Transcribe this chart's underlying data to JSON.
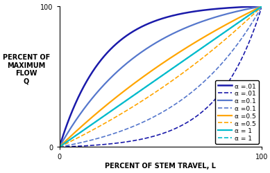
{
  "xlabel": "PERCENT OF STEM TRAVEL, L",
  "ylabel": "PERCENT OF\nMAXIMUM\nFLOW\nQ",
  "xlim": [
    0,
    100
  ],
  "ylim": [
    0,
    100
  ],
  "xtick_vals": [
    0,
    100
  ],
  "ytick_vals": [
    0,
    100
  ],
  "curves": [
    {
      "alpha": 0.01,
      "style": "solid",
      "color": "#1a1aaa",
      "linewidth": 1.8,
      "label": "α =.01"
    },
    {
      "alpha": 0.01,
      "style": "dashed",
      "color": "#1a1aaa",
      "linewidth": 1.2,
      "label": "α =.01"
    },
    {
      "alpha": 0.1,
      "style": "solid",
      "color": "#5577cc",
      "linewidth": 1.6,
      "label": "α =0.1"
    },
    {
      "alpha": 0.1,
      "style": "dashed",
      "color": "#5577cc",
      "linewidth": 1.2,
      "label": "α =0.1"
    },
    {
      "alpha": 0.5,
      "style": "solid",
      "color": "#FFA500",
      "linewidth": 1.6,
      "label": "α =0.5"
    },
    {
      "alpha": 0.5,
      "style": "dashed",
      "color": "#FFA500",
      "linewidth": 1.2,
      "label": "α =0.5"
    },
    {
      "alpha": 1.0,
      "style": "solid",
      "color": "#00BBCC",
      "linewidth": 1.6,
      "label": "α = 1"
    },
    {
      "alpha": 1.0,
      "style": "dashed",
      "color": "#00BBCC",
      "linewidth": 1.2,
      "label": "α = 1"
    }
  ],
  "background_color": "#ffffff",
  "legend_fontsize": 6.5,
  "axis_label_fontsize": 7,
  "tick_fontsize": 7
}
